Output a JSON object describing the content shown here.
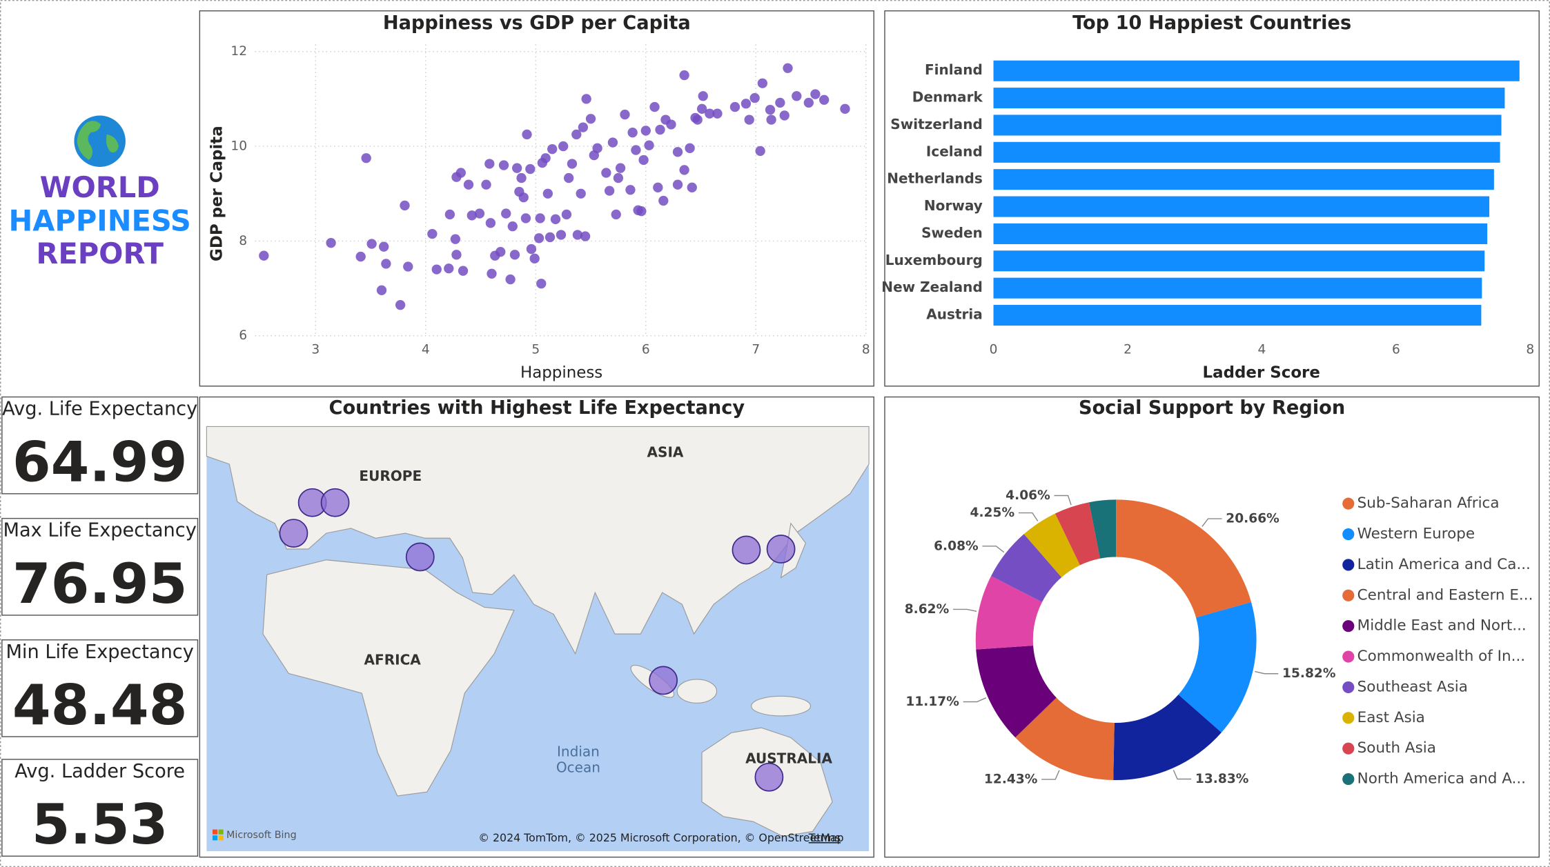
{
  "header": {
    "title_lines": [
      "WORLD",
      "HAPPINESS",
      "REPORT"
    ]
  },
  "cards": [
    {
      "label": "Avg. Life Expectancy",
      "value": 64.99
    },
    {
      "label": "Max Life Expectancy",
      "value": 76.95
    },
    {
      "label": "Min Life Expectancy",
      "value": 48.48
    },
    {
      "label": "Avg. Ladder Score",
      "value": 5.53
    }
  ],
  "chart_data": [
    {
      "type": "scatter",
      "title": "Happiness vs GDP per Capita",
      "x_label": "Happiness",
      "y_label": "GDP per Capita",
      "color": "#744ec2",
      "xlim": [
        2.45,
        8
      ],
      "xticks": [
        3,
        4,
        5,
        6,
        7,
        8
      ],
      "ylim": [
        6,
        12.15
      ],
      "yticks": [
        6,
        8,
        10,
        12
      ],
      "grid": true,
      "x": [
        2.53,
        3.14,
        3.46,
        3.41,
        3.51,
        3.62,
        3.64,
        3.6,
        3.77,
        3.81,
        3.84,
        4.06,
        4.1,
        4.21,
        4.22,
        4.27,
        4.28,
        4.34,
        4.28,
        4.32,
        4.39,
        4.42,
        4.49,
        4.55,
        4.58,
        4.59,
        4.6,
        4.63,
        4.68,
        4.71,
        4.73,
        4.77,
        4.79,
        4.81,
        4.83,
        4.85,
        4.87,
        4.89,
        4.91,
        4.92,
        4.95,
        4.96,
        4.99,
        5.03,
        5.04,
        5.05,
        5.06,
        5.09,
        5.11,
        5.13,
        5.15,
        5.18,
        5.23,
        5.25,
        5.28,
        5.3,
        5.33,
        5.37,
        5.38,
        5.41,
        5.43,
        5.45,
        5.46,
        5.5,
        5.53,
        5.56,
        5.64,
        5.67,
        5.7,
        5.73,
        5.75,
        5.77,
        5.81,
        5.86,
        5.88,
        5.91,
        5.93,
        5.96,
        5.98,
        6.0,
        6.03,
        6.08,
        6.11,
        6.13,
        6.16,
        6.18,
        6.23,
        6.29,
        6.29,
        6.35,
        6.35,
        6.4,
        6.42,
        6.45,
        6.52,
        6.58,
        6.65,
        6.81,
        6.94,
        6.99,
        7.04,
        7.06,
        7.13,
        7.14,
        7.22,
        7.29,
        7.37,
        7.48,
        7.54,
        7.62,
        7.81,
        6.51,
        6.47,
        6.91,
        7.26
      ],
      "y": [
        7.69,
        7.96,
        9.75,
        7.67,
        7.94,
        7.88,
        7.52,
        6.96,
        6.65,
        8.75,
        7.46,
        8.15,
        7.4,
        7.42,
        8.56,
        8.04,
        7.71,
        7.37,
        9.35,
        9.44,
        9.19,
        8.54,
        8.58,
        9.19,
        9.63,
        8.38,
        7.31,
        7.69,
        7.77,
        9.6,
        8.58,
        7.19,
        8.31,
        7.71,
        9.54,
        9.04,
        9.33,
        8.92,
        8.48,
        10.25,
        9.52,
        7.83,
        7.63,
        8.06,
        8.48,
        7.1,
        9.65,
        9.75,
        9.0,
        8.08,
        9.94,
        8.46,
        8.13,
        10.0,
        8.56,
        9.33,
        9.63,
        10.25,
        8.13,
        9.0,
        10.4,
        8.1,
        11.0,
        10.58,
        9.81,
        9.96,
        9.44,
        9.06,
        10.08,
        8.56,
        9.33,
        9.54,
        10.67,
        9.08,
        10.29,
        9.92,
        8.65,
        8.63,
        9.71,
        10.33,
        10.02,
        10.83,
        9.13,
        10.35,
        8.85,
        10.56,
        10.46,
        9.19,
        9.88,
        11.5,
        9.5,
        9.96,
        9.13,
        10.6,
        11.06,
        10.69,
        10.69,
        10.83,
        10.56,
        11.02,
        9.9,
        11.33,
        10.77,
        10.56,
        10.92,
        11.65,
        11.06,
        10.92,
        11.1,
        10.98,
        10.79,
        10.79,
        10.56,
        10.9,
        10.65
      ]
    },
    {
      "type": "bar",
      "orientation": "horizontal",
      "title": "Top 10 Happiest Countries",
      "x_label": "Ladder Score",
      "color": "#118dff",
      "categories": [
        "Finland",
        "Denmark",
        "Switzerland",
        "Iceland",
        "Netherlands",
        "Norway",
        "Sweden",
        "Luxembourg",
        "New Zealand",
        "Austria"
      ],
      "values": [
        7.84,
        7.62,
        7.57,
        7.55,
        7.46,
        7.39,
        7.36,
        7.32,
        7.28,
        7.27
      ],
      "xlim": [
        0,
        8
      ],
      "xticks": [
        0,
        2,
        4,
        6,
        8
      ]
    },
    {
      "type": "map",
      "title": "Countries with Highest Life Expectancy",
      "labels": [
        "EUROPE",
        "ASIA",
        "AFRICA",
        "AUSTRALIA"
      ],
      "ocean_label": [
        "Indian",
        "Ocean"
      ],
      "provider": "Microsoft Bing",
      "attribution": "© 2024 TomTom, © 2025 Microsoft Corporation, © OpenStreetMap",
      "terms": "Terms"
    },
    {
      "type": "pie",
      "donut": true,
      "title": "Social Support by Region",
      "categories": [
        "Sub-Saharan Africa",
        "Western Europe",
        "Latin America and Ca...",
        "Central and Eastern E...",
        "Middle East and Nort...",
        "Commonwealth of In...",
        "Southeast Asia",
        "East Asia",
        "South Asia",
        "North America and A..."
      ],
      "values": [
        20.66,
        15.82,
        13.83,
        12.43,
        11.17,
        8.62,
        6.08,
        4.25,
        4.06,
        3.08
      ],
      "value_labels": [
        "20.66%",
        "15.82%",
        "13.83%",
        "12.43%",
        "11.17%",
        "8.62%",
        "6.08%",
        "4.25%",
        "4.06%",
        null
      ],
      "colors": [
        "#e66c37",
        "#118dff",
        "#12239e",
        "#e66c37",
        "#6b007b",
        "#e044a7",
        "#744ec2",
        "#d9b300",
        "#d64550",
        "#197278"
      ]
    }
  ]
}
